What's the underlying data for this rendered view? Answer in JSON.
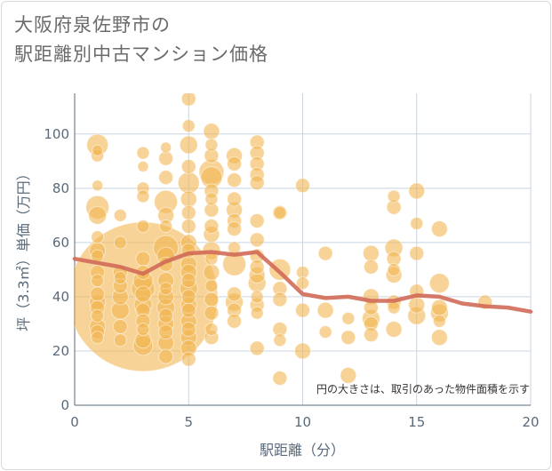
{
  "title_line1": "大阪府泉佐野市の",
  "title_line2": "駅距離別中古マンション価格",
  "chart_data": {
    "type": "scatter",
    "xlabel": "駅距離（分）",
    "ylabel": "坪（3.3㎡）単価（万円）",
    "xlim": [
      0,
      20
    ],
    "ylim": [
      0,
      115
    ],
    "xticks": [
      "0",
      "5",
      "10",
      "15",
      "20"
    ],
    "yticks": [
      "0",
      "20",
      "40",
      "60",
      "80",
      "100"
    ],
    "grid": true,
    "note": "円の大きさは、取引のあった物件面積を示す",
    "colors": {
      "bubble": "#f2b552",
      "line": "#d06a58",
      "grid": "#c9d4df"
    },
    "points": [
      {
        "x": 1,
        "y": 94,
        "s": 6
      },
      {
        "x": 1,
        "y": 92,
        "s": 7
      },
      {
        "x": 1,
        "y": 96,
        "s": 12
      },
      {
        "x": 1,
        "y": 81,
        "s": 6
      },
      {
        "x": 1,
        "y": 73,
        "s": 13
      },
      {
        "x": 1,
        "y": 70,
        "s": 10
      },
      {
        "x": 1,
        "y": 62,
        "s": 7
      },
      {
        "x": 1,
        "y": 57,
        "s": 9
      },
      {
        "x": 1,
        "y": 55,
        "s": 7
      },
      {
        "x": 1,
        "y": 49,
        "s": 8
      },
      {
        "x": 1,
        "y": 46,
        "s": 7
      },
      {
        "x": 1,
        "y": 41,
        "s": 8
      },
      {
        "x": 1,
        "y": 38,
        "s": 9
      },
      {
        "x": 1,
        "y": 36,
        "s": 8
      },
      {
        "x": 1,
        "y": 33,
        "s": 7
      },
      {
        "x": 1,
        "y": 29,
        "s": 9
      },
      {
        "x": 1,
        "y": 27,
        "s": 8
      },
      {
        "x": 1,
        "y": 25,
        "s": 7
      },
      {
        "x": 2,
        "y": 70,
        "s": 7
      },
      {
        "x": 2,
        "y": 60,
        "s": 7
      },
      {
        "x": 2,
        "y": 49,
        "s": 8
      },
      {
        "x": 2,
        "y": 47,
        "s": 7
      },
      {
        "x": 2,
        "y": 44,
        "s": 8
      },
      {
        "x": 2,
        "y": 40,
        "s": 9
      },
      {
        "x": 2,
        "y": 35,
        "s": 10
      },
      {
        "x": 2,
        "y": 29,
        "s": 8
      },
      {
        "x": 2,
        "y": 24,
        "s": 7
      },
      {
        "x": 3,
        "y": 93,
        "s": 7
      },
      {
        "x": 3,
        "y": 88,
        "s": 6
      },
      {
        "x": 3,
        "y": 80,
        "s": 7
      },
      {
        "x": 3,
        "y": 77,
        "s": 7
      },
      {
        "x": 3,
        "y": 66,
        "s": 7
      },
      {
        "x": 3,
        "y": 54,
        "s": 8
      },
      {
        "x": 3,
        "y": 49,
        "s": 8
      },
      {
        "x": 3,
        "y": 46,
        "s": 11
      },
      {
        "x": 3,
        "y": 43,
        "s": 13
      },
      {
        "x": 3,
        "y": 41,
        "s": 9
      },
      {
        "x": 3,
        "y": 37,
        "s": 10
      },
      {
        "x": 3,
        "y": 35,
        "s": 8
      },
      {
        "x": 3,
        "y": 31,
        "s": 8
      },
      {
        "x": 3,
        "y": 28,
        "s": 7
      },
      {
        "x": 3,
        "y": 24,
        "s": 9
      },
      {
        "x": 3,
        "y": 22,
        "s": 11
      },
      {
        "x": 3,
        "y": 40,
        "s": 84
      },
      {
        "x": 4,
        "y": 95,
        "s": 6
      },
      {
        "x": 4,
        "y": 91,
        "s": 8
      },
      {
        "x": 4,
        "y": 84,
        "s": 8
      },
      {
        "x": 4,
        "y": 75,
        "s": 13
      },
      {
        "x": 4,
        "y": 70,
        "s": 9
      },
      {
        "x": 4,
        "y": 66,
        "s": 7
      },
      {
        "x": 4,
        "y": 58,
        "s": 14
      },
      {
        "x": 4,
        "y": 55,
        "s": 10
      },
      {
        "x": 4,
        "y": 52,
        "s": 8
      },
      {
        "x": 4,
        "y": 46,
        "s": 9
      },
      {
        "x": 4,
        "y": 43,
        "s": 7
      },
      {
        "x": 4,
        "y": 40,
        "s": 9
      },
      {
        "x": 4,
        "y": 36,
        "s": 10
      },
      {
        "x": 4,
        "y": 33,
        "s": 8
      },
      {
        "x": 4,
        "y": 30,
        "s": 9
      },
      {
        "x": 4,
        "y": 27,
        "s": 8
      },
      {
        "x": 4,
        "y": 23,
        "s": 9
      },
      {
        "x": 4,
        "y": 18,
        "s": 8
      },
      {
        "x": 5,
        "y": 113,
        "s": 8
      },
      {
        "x": 5,
        "y": 103,
        "s": 7
      },
      {
        "x": 5,
        "y": 96,
        "s": 10
      },
      {
        "x": 5,
        "y": 88,
        "s": 8
      },
      {
        "x": 5,
        "y": 82,
        "s": 12
      },
      {
        "x": 5,
        "y": 76,
        "s": 9
      },
      {
        "x": 5,
        "y": 71,
        "s": 8
      },
      {
        "x": 5,
        "y": 66,
        "s": 8
      },
      {
        "x": 5,
        "y": 60,
        "s": 9
      },
      {
        "x": 5,
        "y": 57,
        "s": 8
      },
      {
        "x": 5,
        "y": 52,
        "s": 9
      },
      {
        "x": 5,
        "y": 49,
        "s": 9
      },
      {
        "x": 5,
        "y": 46,
        "s": 8
      },
      {
        "x": 5,
        "y": 43,
        "s": 10
      },
      {
        "x": 5,
        "y": 40,
        "s": 8
      },
      {
        "x": 5,
        "y": 37,
        "s": 9
      },
      {
        "x": 5,
        "y": 35,
        "s": 8
      },
      {
        "x": 5,
        "y": 31,
        "s": 9
      },
      {
        "x": 5,
        "y": 28,
        "s": 8
      },
      {
        "x": 5,
        "y": 25,
        "s": 9
      },
      {
        "x": 5,
        "y": 21,
        "s": 9
      },
      {
        "x": 5,
        "y": 17,
        "s": 8
      },
      {
        "x": 6,
        "y": 101,
        "s": 9
      },
      {
        "x": 6,
        "y": 96,
        "s": 7
      },
      {
        "x": 6,
        "y": 92,
        "s": 8
      },
      {
        "x": 6,
        "y": 86,
        "s": 14
      },
      {
        "x": 6,
        "y": 84,
        "s": 12
      },
      {
        "x": 6,
        "y": 79,
        "s": 8
      },
      {
        "x": 6,
        "y": 76,
        "s": 7
      },
      {
        "x": 6,
        "y": 72,
        "s": 8
      },
      {
        "x": 6,
        "y": 66,
        "s": 8
      },
      {
        "x": 6,
        "y": 63,
        "s": 9
      },
      {
        "x": 6,
        "y": 57,
        "s": 10
      },
      {
        "x": 6,
        "y": 54,
        "s": 7
      },
      {
        "x": 6,
        "y": 49,
        "s": 9
      },
      {
        "x": 6,
        "y": 44,
        "s": 7
      },
      {
        "x": 6,
        "y": 39,
        "s": 8
      },
      {
        "x": 6,
        "y": 34,
        "s": 8
      },
      {
        "x": 6,
        "y": 28,
        "s": 7
      },
      {
        "x": 6,
        "y": 25,
        "s": 8
      },
      {
        "x": 7,
        "y": 92,
        "s": 9
      },
      {
        "x": 7,
        "y": 89,
        "s": 8
      },
      {
        "x": 7,
        "y": 83,
        "s": 8
      },
      {
        "x": 7,
        "y": 76,
        "s": 8
      },
      {
        "x": 7,
        "y": 72,
        "s": 9
      },
      {
        "x": 7,
        "y": 68,
        "s": 8
      },
      {
        "x": 7,
        "y": 65,
        "s": 8
      },
      {
        "x": 7,
        "y": 58,
        "s": 7
      },
      {
        "x": 7,
        "y": 52,
        "s": 13
      },
      {
        "x": 7,
        "y": 41,
        "s": 8
      },
      {
        "x": 7,
        "y": 38,
        "s": 10
      },
      {
        "x": 7,
        "y": 35,
        "s": 8
      },
      {
        "x": 7,
        "y": 31,
        "s": 8
      },
      {
        "x": 8,
        "y": 97,
        "s": 8
      },
      {
        "x": 8,
        "y": 93,
        "s": 8
      },
      {
        "x": 8,
        "y": 89,
        "s": 8
      },
      {
        "x": 8,
        "y": 85,
        "s": 8
      },
      {
        "x": 8,
        "y": 82,
        "s": 8
      },
      {
        "x": 8,
        "y": 68,
        "s": 8
      },
      {
        "x": 8,
        "y": 61,
        "s": 8
      },
      {
        "x": 8,
        "y": 55,
        "s": 8
      },
      {
        "x": 8,
        "y": 51,
        "s": 8
      },
      {
        "x": 8,
        "y": 48,
        "s": 9
      },
      {
        "x": 8,
        "y": 45,
        "s": 10
      },
      {
        "x": 8,
        "y": 40,
        "s": 7
      },
      {
        "x": 8,
        "y": 37,
        "s": 8
      },
      {
        "x": 8,
        "y": 34,
        "s": 7
      },
      {
        "x": 8,
        "y": 21,
        "s": 8
      },
      {
        "x": 9,
        "y": 71,
        "s": 8
      },
      {
        "x": 9,
        "y": 71,
        "s": 7
      },
      {
        "x": 9,
        "y": 50,
        "s": 12
      },
      {
        "x": 9,
        "y": 43,
        "s": 8
      },
      {
        "x": 9,
        "y": 39,
        "s": 8
      },
      {
        "x": 9,
        "y": 28,
        "s": 8
      },
      {
        "x": 9,
        "y": 24,
        "s": 7
      },
      {
        "x": 9,
        "y": 10,
        "s": 8
      },
      {
        "x": 10,
        "y": 81,
        "s": 8
      },
      {
        "x": 10,
        "y": 49,
        "s": 7
      },
      {
        "x": 10,
        "y": 45,
        "s": 7
      },
      {
        "x": 10,
        "y": 35,
        "s": 8
      },
      {
        "x": 10,
        "y": 20,
        "s": 9
      },
      {
        "x": 11,
        "y": 56,
        "s": 8
      },
      {
        "x": 11,
        "y": 35,
        "s": 9
      },
      {
        "x": 11,
        "y": 27,
        "s": 7
      },
      {
        "x": 12,
        "y": 32,
        "s": 7
      },
      {
        "x": 12,
        "y": 25,
        "s": 8
      },
      {
        "x": 12,
        "y": 11,
        "s": 9
      },
      {
        "x": 13,
        "y": 56,
        "s": 9
      },
      {
        "x": 13,
        "y": 51,
        "s": 8
      },
      {
        "x": 13,
        "y": 40,
        "s": 9
      },
      {
        "x": 13,
        "y": 36,
        "s": 8
      },
      {
        "x": 13,
        "y": 32,
        "s": 10
      },
      {
        "x": 13,
        "y": 30,
        "s": 8
      },
      {
        "x": 13,
        "y": 26,
        "s": 8
      },
      {
        "x": 14,
        "y": 77,
        "s": 7
      },
      {
        "x": 14,
        "y": 73,
        "s": 8
      },
      {
        "x": 14,
        "y": 58,
        "s": 10
      },
      {
        "x": 14,
        "y": 54,
        "s": 8
      },
      {
        "x": 14,
        "y": 50,
        "s": 7
      },
      {
        "x": 14,
        "y": 48,
        "s": 9
      },
      {
        "x": 14,
        "y": 38,
        "s": 8
      },
      {
        "x": 14,
        "y": 36,
        "s": 7
      },
      {
        "x": 14,
        "y": 28,
        "s": 9
      },
      {
        "x": 15,
        "y": 79,
        "s": 9
      },
      {
        "x": 15,
        "y": 67,
        "s": 7
      },
      {
        "x": 15,
        "y": 56,
        "s": 8
      },
      {
        "x": 15,
        "y": 42,
        "s": 8
      },
      {
        "x": 15,
        "y": 37,
        "s": 9
      },
      {
        "x": 15,
        "y": 33,
        "s": 10
      },
      {
        "x": 16,
        "y": 65,
        "s": 9
      },
      {
        "x": 16,
        "y": 45,
        "s": 11
      },
      {
        "x": 16,
        "y": 36,
        "s": 9
      },
      {
        "x": 16,
        "y": 34,
        "s": 10
      },
      {
        "x": 16,
        "y": 31,
        "s": 7
      },
      {
        "x": 16,
        "y": 25,
        "s": 9
      },
      {
        "x": 18,
        "y": 38,
        "s": 8
      }
    ],
    "trend": {
      "x": [
        0,
        1,
        2,
        3,
        4,
        5,
        6,
        7,
        8,
        9,
        10,
        11,
        12,
        13,
        14,
        15,
        16,
        17,
        18,
        19,
        20
      ],
      "y": [
        54,
        52.5,
        51,
        48.5,
        53,
        56,
        56.5,
        55.5,
        56.5,
        49,
        41,
        39.5,
        40,
        38.5,
        38.5,
        40.5,
        40,
        37.5,
        36.5,
        36,
        34.5
      ]
    }
  }
}
